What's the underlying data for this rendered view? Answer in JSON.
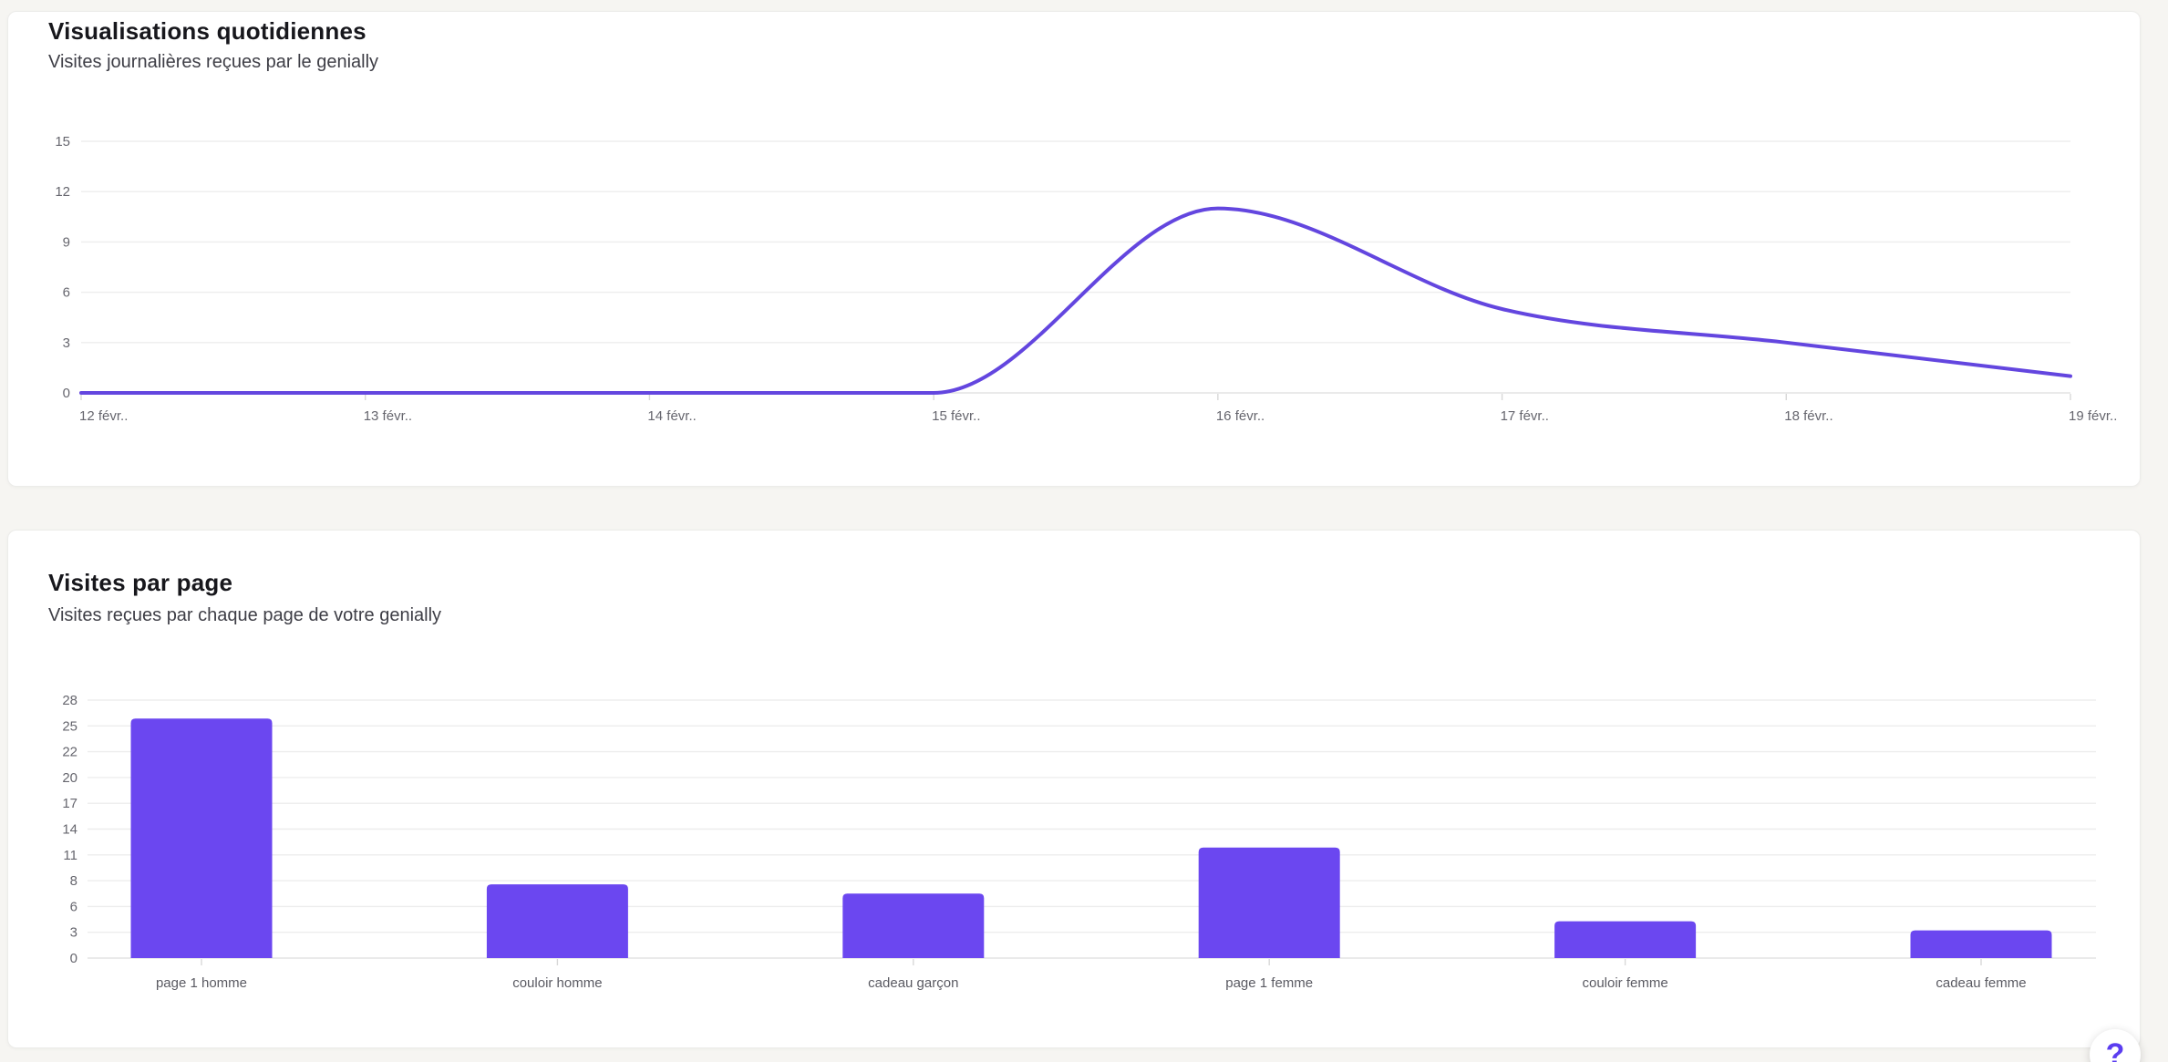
{
  "page": {
    "background_color": "#f6f5f2",
    "card_background_color": "#ffffff"
  },
  "help_button": {
    "label": "?",
    "color": "#5b3df0"
  },
  "chart_data": [
    {
      "type": "line",
      "title": "Visualisations quotidiennes",
      "subtitle": "Visites journalières reçues par le genially",
      "x": [
        "12 févr..",
        "13 févr..",
        "14 févr..",
        "15 févr..",
        "16 févr..",
        "17 févr..",
        "18 févr..",
        "19 févr.."
      ],
      "values": [
        0,
        0,
        0,
        0,
        11,
        5,
        3,
        1
      ],
      "ylim": [
        0,
        15
      ],
      "yticks": [
        0,
        3,
        6,
        9,
        12,
        15
      ],
      "grid": true,
      "legend": "none",
      "line_color": "#6346df",
      "axis_label_color": "#66666e",
      "gridline_color": "#ededed"
    },
    {
      "type": "bar",
      "title": "Visites par page",
      "subtitle": "Visites reçues par chaque page de votre genially",
      "categories": [
        "page 1 homme",
        "couloir homme",
        "cadeau garçon",
        "page 1 femme",
        "couloir femme",
        "cadeau femme"
      ],
      "values": [
        26,
        8,
        7,
        12,
        4,
        3
      ],
      "ylim": [
        0,
        28
      ],
      "ytick_labels": [
        "0",
        "3",
        "6",
        "8",
        "11",
        "14",
        "17",
        "20",
        "22",
        "25",
        "28"
      ],
      "grid": true,
      "legend": "none",
      "bar_color": "#6b47f0",
      "axis_label_color": "#66666e",
      "gridline_color": "#ededed"
    }
  ]
}
